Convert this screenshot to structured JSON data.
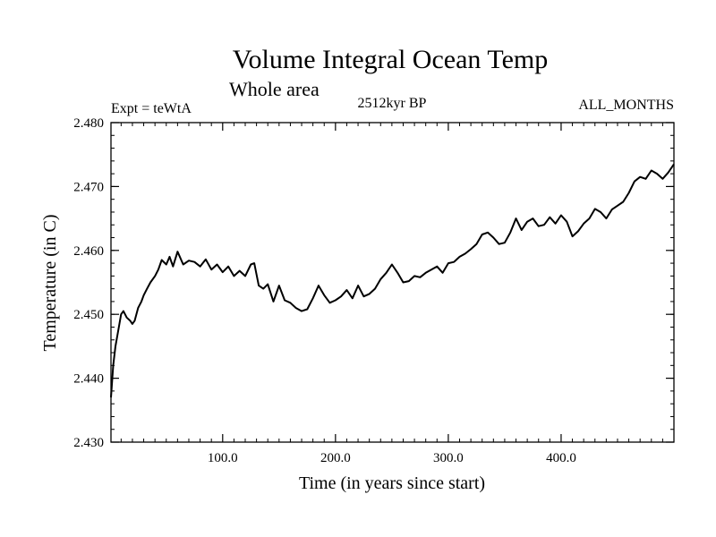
{
  "chart_data": {
    "type": "line",
    "title": "Volume Integral Ocean Temp",
    "subtitle": "Whole area",
    "experiment_label": "Expt = teWtA",
    "period_label": "2512kyr BP",
    "months_label": "ALL_MONTHS",
    "xlabel": "Time (in years since start)",
    "ylabel": "Temperature (in C)",
    "xlim": [
      1,
      500
    ],
    "ylim": [
      2.43,
      2.48
    ],
    "x_ticks": [
      {
        "value": 100,
        "label": "100.0"
      },
      {
        "value": 200,
        "label": "200.0"
      },
      {
        "value": 300,
        "label": "300.0"
      },
      {
        "value": 400,
        "label": "400.0"
      }
    ],
    "y_ticks": [
      {
        "value": 2.43,
        "label": "2.430"
      },
      {
        "value": 2.44,
        "label": "2.440"
      },
      {
        "value": 2.45,
        "label": "2.450"
      },
      {
        "value": 2.46,
        "label": "2.460"
      },
      {
        "value": 2.47,
        "label": "2.470"
      },
      {
        "value": 2.48,
        "label": "2.480"
      }
    ],
    "grid": false,
    "series": [
      {
        "name": "teWtA",
        "color": "#000000",
        "x": [
          1,
          3,
          5,
          8,
          10,
          12,
          15,
          18,
          20,
          22,
          25,
          28,
          30,
          33,
          36,
          40,
          43,
          46,
          50,
          53,
          56,
          60,
          65,
          70,
          75,
          80,
          85,
          90,
          95,
          100,
          105,
          110,
          115,
          120,
          125,
          128,
          132,
          136,
          140,
          145,
          150,
          155,
          160,
          165,
          170,
          175,
          180,
          185,
          190,
          195,
          200,
          205,
          210,
          215,
          220,
          225,
          230,
          235,
          240,
          245,
          250,
          255,
          260,
          265,
          270,
          275,
          280,
          285,
          290,
          295,
          300,
          305,
          310,
          315,
          320,
          325,
          330,
          335,
          340,
          345,
          350,
          355,
          360,
          365,
          370,
          375,
          380,
          385,
          390,
          395,
          400,
          405,
          410,
          415,
          420,
          425,
          430,
          435,
          440,
          445,
          450,
          455,
          460,
          465,
          470,
          475,
          480,
          485,
          490,
          495,
          500
        ],
        "values": [
          2.437,
          2.442,
          2.445,
          2.448,
          2.45,
          2.4505,
          2.4495,
          2.449,
          2.4485,
          2.449,
          2.451,
          2.452,
          2.453,
          2.454,
          2.455,
          2.456,
          2.457,
          2.4585,
          2.4578,
          2.459,
          2.4575,
          2.4598,
          2.4578,
          2.4584,
          2.4582,
          2.4575,
          2.4586,
          2.457,
          2.4578,
          2.4566,
          2.4575,
          2.456,
          2.4568,
          2.456,
          2.4578,
          2.458,
          2.4545,
          2.454,
          2.4547,
          2.452,
          2.4545,
          2.4522,
          2.4518,
          2.451,
          2.4505,
          2.4508,
          2.4525,
          2.4545,
          2.453,
          2.4518,
          2.4522,
          2.4528,
          2.4538,
          2.4525,
          2.4545,
          2.4528,
          2.4532,
          2.454,
          2.4555,
          2.4565,
          2.4578,
          2.4565,
          2.455,
          2.4552,
          2.456,
          2.4558,
          2.4565,
          2.457,
          2.4575,
          2.4565,
          2.458,
          2.4582,
          2.459,
          2.4595,
          2.4602,
          2.461,
          2.4625,
          2.4628,
          2.462,
          2.461,
          2.4612,
          2.4628,
          2.465,
          2.4632,
          2.4645,
          2.465,
          2.4638,
          2.464,
          2.4652,
          2.4642,
          2.4655,
          2.4645,
          2.4622,
          2.463,
          2.4642,
          2.465,
          2.4665,
          2.466,
          2.465,
          2.4664,
          2.467,
          2.4676,
          2.469,
          2.4708,
          2.4715,
          2.4712,
          2.4725,
          2.472,
          2.4712,
          2.4722,
          2.4735
        ]
      }
    ]
  }
}
